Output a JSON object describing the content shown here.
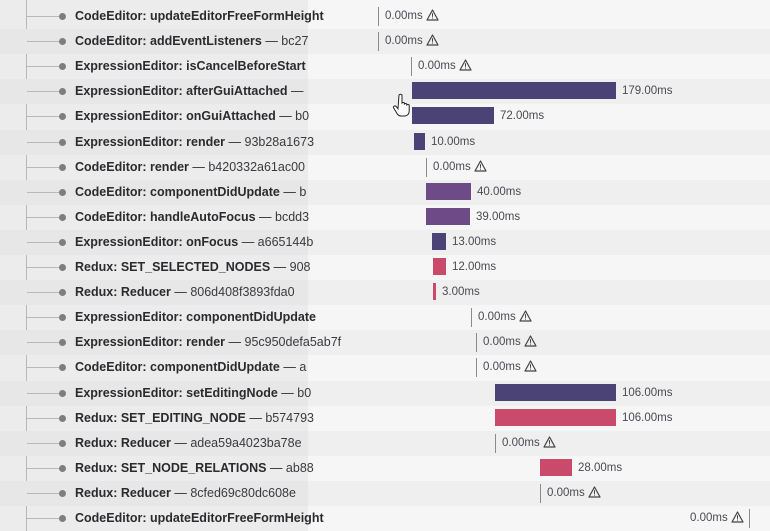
{
  "colors": {
    "bar_dark": "#4b4375",
    "bar_purple": "#6e4a86",
    "bar_pink": "#c94a6a"
  },
  "icons": {
    "warning": "warning-icon",
    "cursor": "hand-pointer-icon"
  },
  "spans": [
    {
      "op": "CodeEditor: updateEditorFreeFormHeight",
      "sep": "",
      "hash": "",
      "duration": "0.00ms",
      "warning": true
    },
    {
      "op": "CodeEditor: addEventListeners",
      "sep": " — ",
      "hash": "bc27",
      "duration": "0.00ms",
      "warning": true
    },
    {
      "op": "ExpressionEditor: isCancelBeforeStart",
      "sep": "",
      "hash": "",
      "duration": "0.00ms",
      "warning": true
    },
    {
      "op": "ExpressionEditor: afterGuiAttached",
      "sep": " —",
      "hash": "",
      "duration": "179.00ms",
      "warning": false
    },
    {
      "op": "ExpressionEditor: onGuiAttached",
      "sep": " — ",
      "hash": "b0",
      "duration": "72.00ms",
      "warning": false
    },
    {
      "op": "ExpressionEditor: render",
      "sep": " — ",
      "hash": "93b28a1673",
      "duration": "10.00ms",
      "warning": false
    },
    {
      "op": "CodeEditor: render",
      "sep": " — ",
      "hash": "b420332a61ac00",
      "duration": "0.00ms",
      "warning": true
    },
    {
      "op": "CodeEditor: componentDidUpdate",
      "sep": " — ",
      "hash": "b",
      "duration": "40.00ms",
      "warning": false
    },
    {
      "op": "CodeEditor: handleAutoFocus",
      "sep": " — ",
      "hash": "bcdd3",
      "duration": "39.00ms",
      "warning": false
    },
    {
      "op": "ExpressionEditor: onFocus",
      "sep": " — ",
      "hash": "a665144b",
      "duration": "13.00ms",
      "warning": false
    },
    {
      "op": "Redux: SET_SELECTED_NODES",
      "sep": " — ",
      "hash": "908",
      "duration": "12.00ms",
      "warning": false
    },
    {
      "op": "Redux: Reducer",
      "sep": " — ",
      "hash": "806d408f3893fda0",
      "duration": "3.00ms",
      "warning": false
    },
    {
      "op": "ExpressionEditor: componentDidUpdate",
      "sep": "",
      "hash": "",
      "duration": "0.00ms",
      "warning": true
    },
    {
      "op": "ExpressionEditor: render",
      "sep": " — ",
      "hash": "95c950defa5ab7f",
      "duration": "0.00ms",
      "warning": true
    },
    {
      "op": "CodeEditor: componentDidUpdate",
      "sep": " — ",
      "hash": "a",
      "duration": "0.00ms",
      "warning": true
    },
    {
      "op": "ExpressionEditor: setEditingNode",
      "sep": " — ",
      "hash": "b0",
      "duration": "106.00ms",
      "warning": false
    },
    {
      "op": "Redux: SET_EDITING_NODE",
      "sep": " — ",
      "hash": "b574793",
      "duration": "106.00ms",
      "warning": false
    },
    {
      "op": "Redux: Reducer",
      "sep": " — ",
      "hash": "adea59a4023ba78e",
      "duration": "0.00ms",
      "warning": true
    },
    {
      "op": "Redux: SET_NODE_RELATIONS",
      "sep": " — ",
      "hash": "ab88",
      "duration": "28.00ms",
      "warning": false
    },
    {
      "op": "Redux: Reducer",
      "sep": " — ",
      "hash": "8cfed69c80dc608e",
      "duration": "0.00ms",
      "warning": true
    },
    {
      "op": "CodeEditor: updateEditorFreeFormHeight",
      "sep": "",
      "hash": "",
      "duration": "0.00ms",
      "warning": true
    }
  ]
}
